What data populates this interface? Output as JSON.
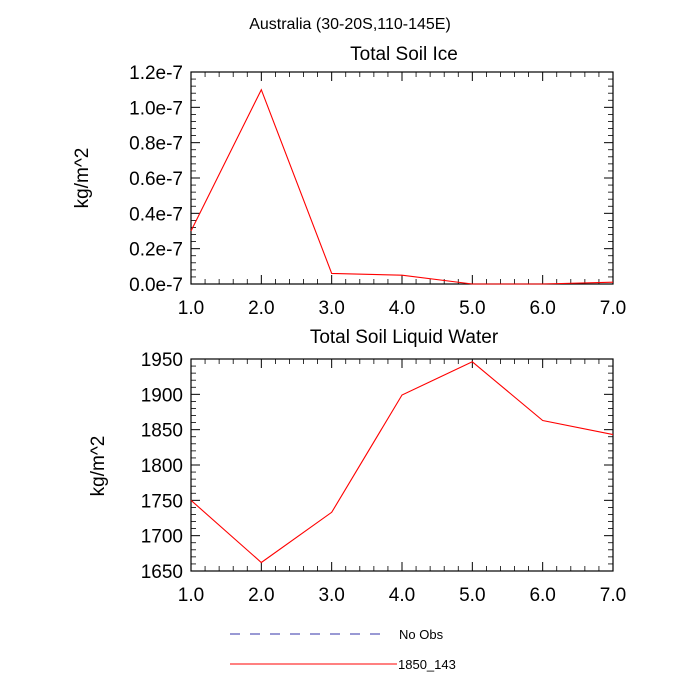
{
  "main_title": "Australia (30-20S,110-145E)",
  "chart_data": [
    {
      "type": "line",
      "title": "Total Soil Ice",
      "xlabel": "",
      "ylabel": "kg/m^2",
      "x": [
        1,
        2,
        3,
        4,
        5,
        6,
        7
      ],
      "xticks": [
        "1.0",
        "2.0",
        "3.0",
        "4.0",
        "5.0",
        "6.0",
        "7.0"
      ],
      "xlim": [
        1,
        7
      ],
      "ylim": [
        0,
        1.2e-07
      ],
      "yticks": [
        0,
        2e-08,
        4e-08,
        6e-08,
        8e-08,
        1e-07,
        1.2e-07
      ],
      "yticklabels": [
        "0.0e-7",
        "0.2e-7",
        "0.4e-7",
        "0.6e-7",
        "0.8e-7",
        "1.0e-7",
        "1.2e-7"
      ],
      "grid": false,
      "series": [
        {
          "color": "#ff0000",
          "dash": "solid",
          "values": [
            3e-08,
            1.1e-07,
            6e-09,
            5e-09,
            0,
            0,
            1e-09
          ]
        }
      ]
    },
    {
      "type": "line",
      "title": "Total Soil Liquid Water",
      "xlabel": "",
      "ylabel": "kg/m^2",
      "x": [
        1,
        2,
        3,
        4,
        5,
        6,
        7
      ],
      "xticks": [
        "1.0",
        "2.0",
        "3.0",
        "4.0",
        "5.0",
        "6.0",
        "7.0"
      ],
      "xlim": [
        1,
        7
      ],
      "ylim": [
        1650,
        1950
      ],
      "yticks": [
        1650,
        1700,
        1750,
        1800,
        1850,
        1900,
        1950
      ],
      "yticklabels": [
        "1650",
        "1700",
        "1750",
        "1800",
        "1850",
        "1900",
        "1950"
      ],
      "grid": false,
      "series": [
        {
          "color": "#ff0000",
          "dash": "solid",
          "values": [
            1750,
            1662,
            1733,
            1899,
            1946,
            1863,
            1843
          ]
        }
      ]
    }
  ],
  "legend": {
    "placement": "bottom",
    "items": [
      {
        "label": "No Obs",
        "color": "#3333aa",
        "dash": "dashed"
      },
      {
        "label": "1850_143",
        "color": "#ff0000",
        "dash": "solid"
      }
    ]
  }
}
